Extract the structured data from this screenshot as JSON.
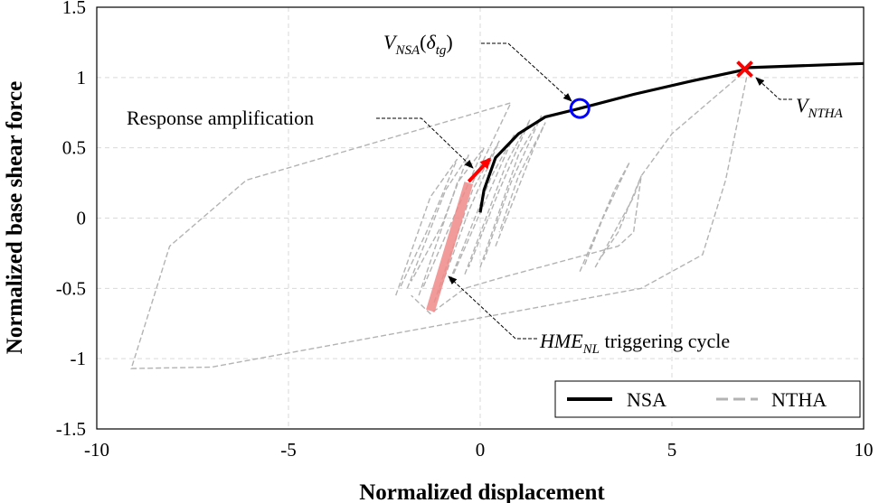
{
  "chart_data": {
    "type": "line",
    "title": "",
    "xlabel": "Normalized displacement",
    "ylabel": "Normalized base shear force",
    "xlim": [
      -10,
      10
    ],
    "ylim": [
      -1.5,
      1.5
    ],
    "xticks": [
      -10,
      -5,
      0,
      5,
      10
    ],
    "yticks": [
      -1.5,
      -1,
      -0.5,
      0,
      0.5,
      1,
      1.5
    ],
    "x_tick_labels": [
      "-10",
      "-5",
      "0",
      "5",
      "10"
    ],
    "y_tick_labels": [
      "-1.5",
      "-1",
      "-0.5",
      "0",
      "0.5",
      "1",
      "1.5"
    ],
    "grid": true,
    "legend_position": "bottom-right",
    "legend": [
      {
        "label": "NSA",
        "color": "#000000",
        "style": "solid"
      },
      {
        "label": "NTHA",
        "color": "#b3b3b3",
        "style": "dashed"
      }
    ],
    "series": [
      {
        "name": "NSA",
        "color": "#000000",
        "style": "solid",
        "points": [
          [
            0,
            0.04
          ],
          [
            0.1,
            0.2
          ],
          [
            0.4,
            0.43
          ],
          [
            1.0,
            0.6
          ],
          [
            1.7,
            0.72
          ],
          [
            2.6,
            0.78
          ],
          [
            4.0,
            0.88
          ],
          [
            5.6,
            0.98
          ],
          [
            6.8,
            1.05
          ],
          [
            7.0,
            1.07
          ],
          [
            10,
            1.1
          ]
        ]
      },
      {
        "name": "NTHA",
        "color": "#b3b3b3",
        "style": "dashed",
        "envelope_points": [
          [
            -0.2,
            0.25
          ],
          [
            0.8,
            0.82
          ],
          [
            -6.1,
            0.27
          ],
          [
            -8.1,
            -0.2
          ],
          [
            -9.1,
            -1.07
          ],
          [
            -7.0,
            -1.06
          ],
          [
            4.2,
            -0.5
          ],
          [
            5.8,
            -0.26
          ],
          [
            6.4,
            0.27
          ],
          [
            7.0,
            1.07
          ],
          [
            6.8,
            1.02
          ],
          [
            5.0,
            0.6
          ],
          [
            4.2,
            0.3
          ],
          [
            4.0,
            -0.1
          ],
          [
            3.6,
            -0.2
          ],
          [
            0.6,
            -0.42
          ],
          [
            -0.4,
            -0.5
          ],
          [
            -1.3,
            -0.68
          ],
          [
            -1.8,
            -0.55
          ]
        ],
        "cycles": [
          [
            [
              -2.2,
              -0.55
            ],
            [
              -1.3,
              0.15
            ],
            [
              -0.6,
              0.42
            ],
            [
              -1.4,
              -0.1
            ],
            [
              -2.1,
              -0.5
            ]
          ],
          [
            [
              -1.9,
              -0.5
            ],
            [
              -0.9,
              0.2
            ],
            [
              -0.3,
              0.45
            ],
            [
              -1.0,
              -0.05
            ],
            [
              -1.8,
              -0.45
            ]
          ],
          [
            [
              -1.6,
              -0.55
            ],
            [
              -0.6,
              0.25
            ],
            [
              0.1,
              0.5
            ],
            [
              -0.7,
              0.0
            ],
            [
              -1.5,
              -0.5
            ]
          ],
          [
            [
              -1.2,
              -0.6
            ],
            [
              -0.2,
              0.2
            ],
            [
              0.5,
              0.55
            ],
            [
              -0.3,
              0.05
            ],
            [
              -1.1,
              -0.55
            ]
          ],
          [
            [
              -0.8,
              -0.45
            ],
            [
              0.3,
              0.3
            ],
            [
              0.9,
              0.6
            ],
            [
              0.1,
              0.1
            ],
            [
              -0.7,
              -0.4
            ]
          ],
          [
            [
              -0.4,
              -0.4
            ],
            [
              0.7,
              0.4
            ],
            [
              1.3,
              0.7
            ],
            [
              0.5,
              0.2
            ],
            [
              -0.3,
              -0.35
            ]
          ],
          [
            [
              0.0,
              -0.35
            ],
            [
              1.0,
              0.45
            ],
            [
              1.6,
              0.73
            ],
            [
              0.8,
              0.25
            ],
            [
              0.1,
              -0.3
            ]
          ],
          [
            [
              0.4,
              -0.2
            ],
            [
              1.4,
              0.5
            ],
            [
              1.7,
              0.68
            ],
            [
              1.0,
              0.3
            ],
            [
              0.5,
              -0.1
            ]
          ],
          [
            [
              2.6,
              -0.38
            ],
            [
              3.5,
              0.2
            ],
            [
              3.9,
              0.4
            ],
            [
              3.2,
              0.0
            ],
            [
              2.7,
              -0.35
            ]
          ],
          [
            [
              3.0,
              -0.35
            ],
            [
              4.0,
              0.15
            ],
            [
              4.2,
              0.3
            ],
            [
              3.6,
              -0.1
            ],
            [
              3.1,
              -0.3
            ]
          ]
        ]
      },
      {
        "name": "HME_NL triggering cycle",
        "color": "#f08a8a",
        "style": "band",
        "points": [
          [
            -1.3,
            -0.66
          ],
          [
            -0.3,
            0.25
          ]
        ]
      },
      {
        "name": "Response amplification",
        "color": "#ff0000",
        "style": "arrow",
        "points": [
          [
            -0.3,
            0.26
          ],
          [
            0.25,
            0.42
          ]
        ]
      }
    ],
    "markers": [
      {
        "label": "V_NSA(δ_tg)",
        "shape": "circle",
        "color": "#0000ff",
        "x": 2.6,
        "y": 0.78
      },
      {
        "label": "V_NTHA",
        "shape": "x",
        "color": "#ff0000",
        "x": 6.9,
        "y": 1.06
      }
    ],
    "annotations": {
      "response_amplification": "Response amplification",
      "hme_base": "HME",
      "hme_sub": "NL",
      "hme_suffix": " triggering cycle",
      "vnsa_v": "V",
      "vnsa_sub": "NSA",
      "vnsa_paren_open": "(",
      "vnsa_delta": "δ",
      "vnsa_delta_sub": "tg",
      "vnsa_paren_close": ")",
      "vntha_v": "V",
      "vntha_sub": "NTHA"
    }
  }
}
